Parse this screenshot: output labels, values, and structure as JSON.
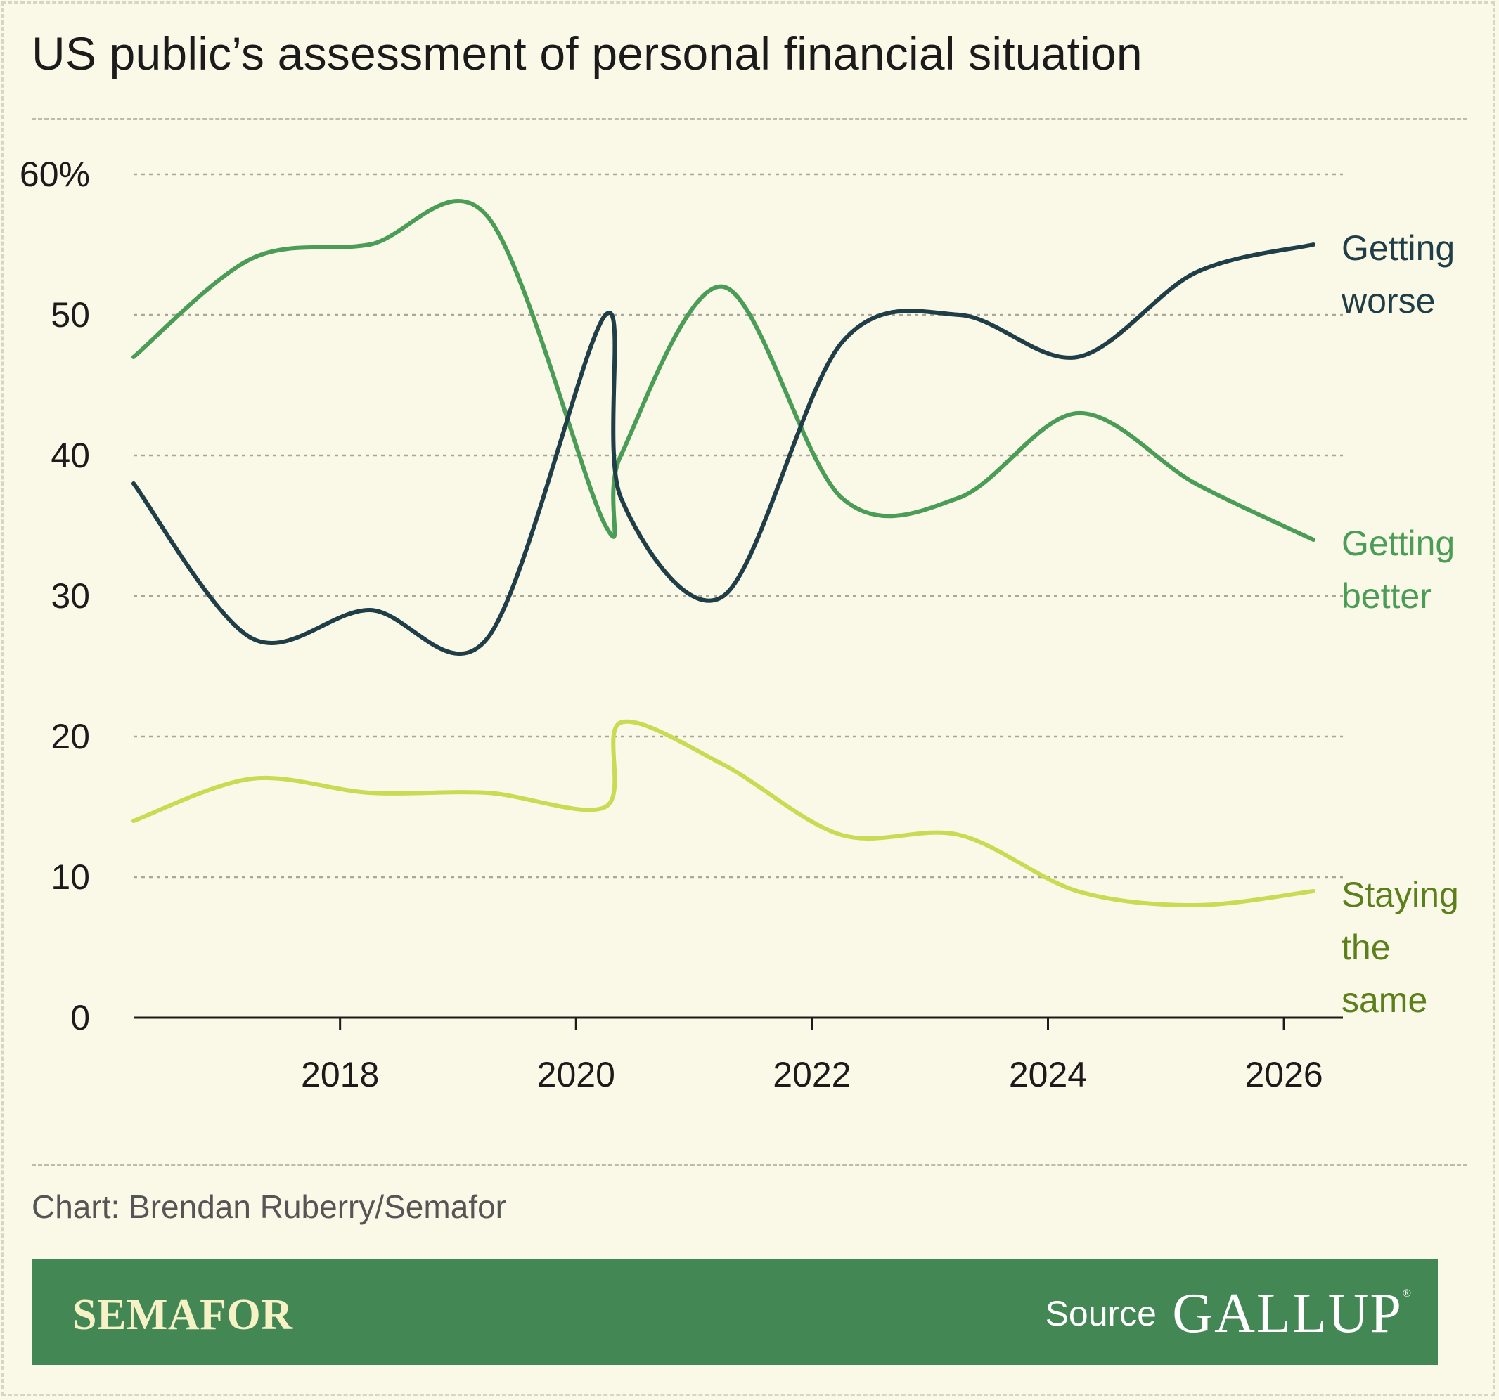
{
  "header": {
    "title": "US public’s assessment of personal financial situation"
  },
  "credit": "Chart: Brendan Ruberry/Semafor",
  "footer": {
    "brand": "SEMAFOR",
    "source_label": "Source",
    "source_name": "GALLUP"
  },
  "colors": {
    "background": "#faf8e6",
    "footer_bg": "#428754",
    "getting_worse": "#1f3e47",
    "getting_better": "#4a9c57",
    "staying_same_line": "#c7dc52",
    "staying_same_label": "#5b7f1a",
    "grid": "#a9a79a"
  },
  "chart_data": {
    "type": "line",
    "x_axis": {
      "min": 2016.25,
      "max": 2026.5,
      "ticks": [
        2018,
        2020,
        2022,
        2024,
        2026
      ],
      "tick_labels": [
        "2018",
        "2020",
        "2022",
        "2024",
        "2026"
      ]
    },
    "y_axis": {
      "min": 0,
      "max": 60,
      "ticks": [
        0,
        10,
        20,
        30,
        40,
        50,
        60
      ],
      "tick_labels": [
        "0",
        "10",
        "20",
        "30",
        "40",
        "50",
        "60%"
      ]
    },
    "grid": true,
    "legend": "direct labels at right end of lines",
    "series": [
      {
        "name": "Getting worse",
        "label_lines": [
          "Getting",
          "worse"
        ],
        "color": "#1f3e47",
        "label_color": "#1f3e47",
        "x": [
          2016.25,
          2017.25,
          2018.25,
          2019.25,
          2020.25,
          2020.38,
          2021.25,
          2022.25,
          2023.25,
          2024.25,
          2025.25,
          2026.25
        ],
        "y": [
          38,
          27,
          29,
          27,
          50,
          37,
          30,
          48,
          50,
          47,
          53,
          55
        ]
      },
      {
        "name": "Getting better",
        "label_lines": [
          "Getting",
          "better"
        ],
        "color": "#4a9c57",
        "label_color": "#4a9c57",
        "x": [
          2016.25,
          2017.25,
          2018.25,
          2019.25,
          2020.25,
          2020.38,
          2021.25,
          2022.25,
          2023.25,
          2024.25,
          2025.25,
          2026.25
        ],
        "y": [
          47,
          54,
          55,
          57,
          35,
          40,
          52,
          37,
          37,
          43,
          38,
          34
        ]
      },
      {
        "name": "Staying the same",
        "label_lines": [
          "Staying",
          "the",
          "same"
        ],
        "color": "#c7dc52",
        "label_color": "#5b7f1a",
        "x": [
          2016.25,
          2017.25,
          2018.25,
          2019.25,
          2020.25,
          2020.38,
          2021.25,
          2022.25,
          2023.25,
          2024.25,
          2025.25,
          2026.25
        ],
        "y": [
          14,
          17,
          16,
          16,
          15,
          21,
          18,
          13,
          13,
          9,
          8,
          9
        ]
      }
    ]
  }
}
